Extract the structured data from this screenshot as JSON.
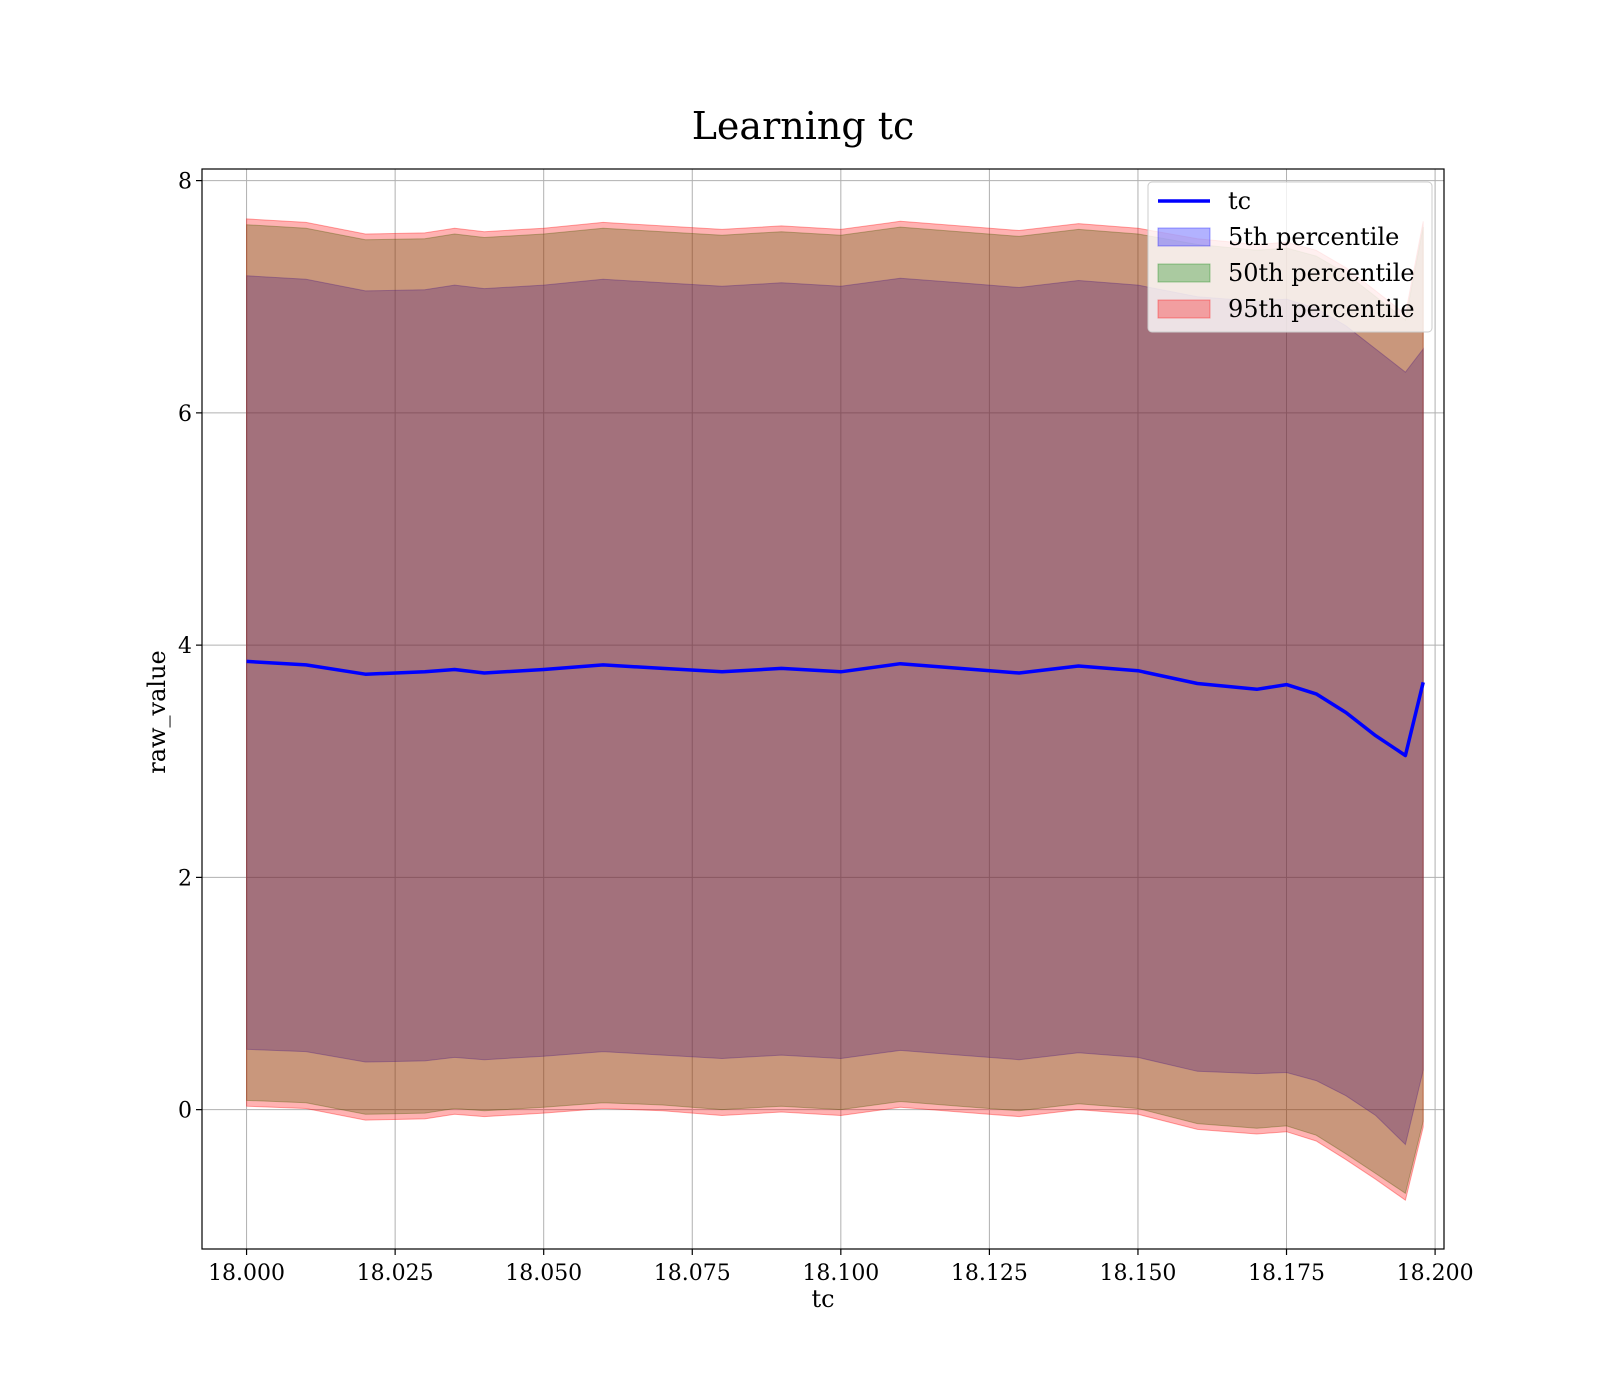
{
  "chart_data": {
    "type": "area",
    "title": "Learning tc",
    "xlabel": "tc",
    "ylabel": "raw_value",
    "xlim": [
      17.9925,
      18.2015
    ],
    "ylim": [
      -1.2,
      8.1
    ],
    "grid": true,
    "legend_placement": "top-right",
    "x_ticks": [
      "18.000",
      "18.025",
      "18.050",
      "18.075",
      "18.100",
      "18.125",
      "18.150",
      "18.175",
      "18.200"
    ],
    "y_ticks": [
      "0",
      "2",
      "4",
      "6",
      "8"
    ],
    "colors": {
      "line": "#0000ff",
      "band_5th": "#0000ff",
      "band_50th": "#008000",
      "band_95th": "#ff0000"
    },
    "legend": [
      {
        "label": "tc",
        "kind": "line"
      },
      {
        "label": "5th percentile",
        "kind": "band",
        "color": "#0000ff"
      },
      {
        "label": "50th percentile",
        "kind": "band",
        "color": "#008000"
      },
      {
        "label": "95th percentile",
        "kind": "band",
        "color": "#ff0000"
      }
    ],
    "x": [
      18.0,
      18.01,
      18.02,
      18.03,
      18.035,
      18.04,
      18.05,
      18.06,
      18.07,
      18.08,
      18.09,
      18.1,
      18.11,
      18.12,
      18.13,
      18.14,
      18.15,
      18.16,
      18.17,
      18.175,
      18.18,
      18.185,
      18.19,
      18.195,
      18.198
    ],
    "series": [
      {
        "name": "tc",
        "values": [
          3.86,
          3.83,
          3.75,
          3.77,
          3.79,
          3.76,
          3.79,
          3.83,
          3.8,
          3.77,
          3.8,
          3.77,
          3.84,
          3.8,
          3.76,
          3.82,
          3.78,
          3.67,
          3.62,
          3.66,
          3.58,
          3.42,
          3.22,
          3.05,
          3.68
        ]
      },
      {
        "name": "5th percentile",
        "lower": [
          0.52,
          0.5,
          0.41,
          0.42,
          0.45,
          0.43,
          0.46,
          0.5,
          0.47,
          0.44,
          0.47,
          0.44,
          0.51,
          0.47,
          0.43,
          0.49,
          0.45,
          0.33,
          0.31,
          0.32,
          0.25,
          0.12,
          -0.05,
          -0.3,
          0.34
        ],
        "upper": [
          7.18,
          7.15,
          7.05,
          7.06,
          7.1,
          7.07,
          7.1,
          7.15,
          7.12,
          7.09,
          7.12,
          7.09,
          7.16,
          7.12,
          7.08,
          7.14,
          7.1,
          7.0,
          6.96,
          6.98,
          6.9,
          6.75,
          6.55,
          6.35,
          6.55
        ]
      },
      {
        "name": "50th percentile",
        "lower": [
          0.08,
          0.06,
          -0.04,
          -0.03,
          0.01,
          -0.01,
          0.02,
          0.06,
          0.04,
          0.0,
          0.03,
          0.0,
          0.07,
          0.03,
          -0.01,
          0.05,
          0.01,
          -0.12,
          -0.16,
          -0.14,
          -0.22,
          -0.38,
          -0.55,
          -0.72,
          -0.1
        ],
        "upper": [
          7.62,
          7.59,
          7.49,
          7.5,
          7.54,
          7.51,
          7.54,
          7.59,
          7.56,
          7.53,
          7.56,
          7.53,
          7.6,
          7.56,
          7.52,
          7.58,
          7.54,
          7.45,
          7.4,
          7.42,
          7.35,
          7.2,
          7.0,
          6.8,
          7.6
        ]
      },
      {
        "name": "95th percentile",
        "lower": [
          0.03,
          0.01,
          -0.09,
          -0.08,
          -0.04,
          -0.06,
          -0.03,
          0.01,
          -0.01,
          -0.05,
          -0.02,
          -0.05,
          0.02,
          -0.02,
          -0.06,
          0.0,
          -0.04,
          -0.17,
          -0.21,
          -0.19,
          -0.27,
          -0.43,
          -0.6,
          -0.78,
          -0.15
        ],
        "upper": [
          7.67,
          7.64,
          7.54,
          7.55,
          7.59,
          7.56,
          7.59,
          7.64,
          7.61,
          7.58,
          7.61,
          7.58,
          7.65,
          7.61,
          7.57,
          7.63,
          7.59,
          7.5,
          7.45,
          7.47,
          7.4,
          7.25,
          7.05,
          6.85,
          7.65
        ]
      }
    ]
  }
}
